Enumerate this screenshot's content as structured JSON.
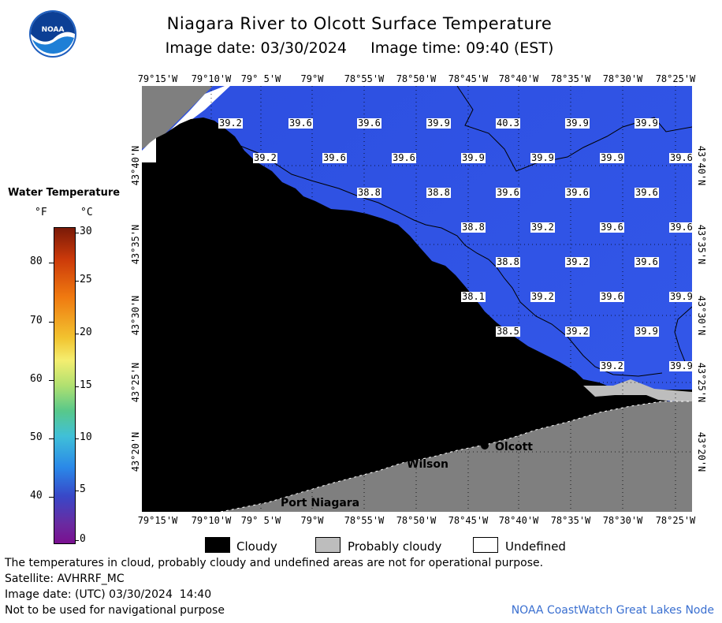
{
  "header": {
    "title": "Niagara River to Olcott Surface Temperature",
    "image_date_line": "Image date: 03/30/2024     Image time: 09:40 (EST)",
    "logo_text": "NOAA"
  },
  "map": {
    "lon_labels": [
      "79°15'W",
      "79°10'W",
      "79° 5'W",
      "79°W",
      "78°55'W",
      "78°50'W",
      "78°45'W",
      "78°40'W",
      "78°35'W",
      "78°30'W",
      "78°25'W"
    ],
    "lat_labels": [
      "43°40'N",
      "43°35'N",
      "43°30'N",
      "43°25'N",
      "43°20'N"
    ],
    "places": {
      "olcott": "Olcott",
      "wilson": "Wilson",
      "port_niagara": "Port Niagara"
    },
    "temperatures": [
      [
        "39.2",
        "39.6",
        "39.6",
        "39.9",
        "40.3",
        "39.9",
        "39.9"
      ],
      [
        "39.2",
        "39.6",
        "39.6",
        "39.9",
        "39.9",
        "39.9",
        "39.6"
      ],
      [
        "38.8",
        "38.8",
        "39.6",
        "39.6",
        "39.6"
      ],
      [
        "38.8",
        "39.2",
        "39.6",
        "39.6"
      ],
      [
        "38.8",
        "39.2",
        "39.6"
      ],
      [
        "38.1",
        "39.2",
        "39.6",
        "39.9"
      ],
      [
        "38.5",
        "39.2",
        "39.9"
      ],
      [
        "39.2",
        "39.9"
      ]
    ],
    "colors": {
      "water": "#2f55e6",
      "cloudy": "#000000",
      "probably_cloudy": "#bdbdbd",
      "land": "#7f7f7f",
      "undefined": "#ffffff"
    }
  },
  "colorbar": {
    "title": "Water Temperature",
    "unit_f": "°F",
    "unit_c": "°C",
    "f_ticks": [
      "80",
      "70",
      "60",
      "50",
      "40"
    ],
    "c_ticks": [
      "30",
      "25",
      "20",
      "15",
      "10",
      "5",
      "0"
    ]
  },
  "legend": {
    "cloudy": "Cloudy",
    "probably_cloudy": "Probably cloudy",
    "undefined": "Undefined"
  },
  "footer": {
    "disclaimer": "The temperatures in cloud, probably cloudy and undefined areas are not for operational purpose.",
    "satellite": "Satellite: AVHRRF_MC",
    "utc_date": "Image date: (UTC) 03/30/2024  14:40",
    "navigation": "Not to be used for navigational purpose",
    "credit": "NOAA CoastWatch Great Lakes Node"
  }
}
